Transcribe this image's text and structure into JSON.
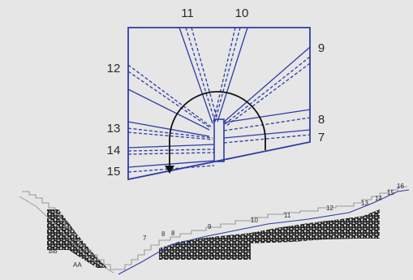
{
  "plan": {
    "step_labels": [
      "11",
      "10",
      "9",
      "12",
      "8",
      "13",
      "7",
      "14",
      "15"
    ]
  },
  "section": {
    "step_labels": [
      "7",
      "8",
      "9",
      "10",
      "11",
      "12",
      "13",
      "14",
      "15",
      "16"
    ],
    "mark_left": "BB",
    "mark_right": "AA"
  },
  "colors": {
    "line": "#2e3ca6",
    "fill_dark": "#222222",
    "arrow": "#111111",
    "background": "#e6e6e6"
  }
}
